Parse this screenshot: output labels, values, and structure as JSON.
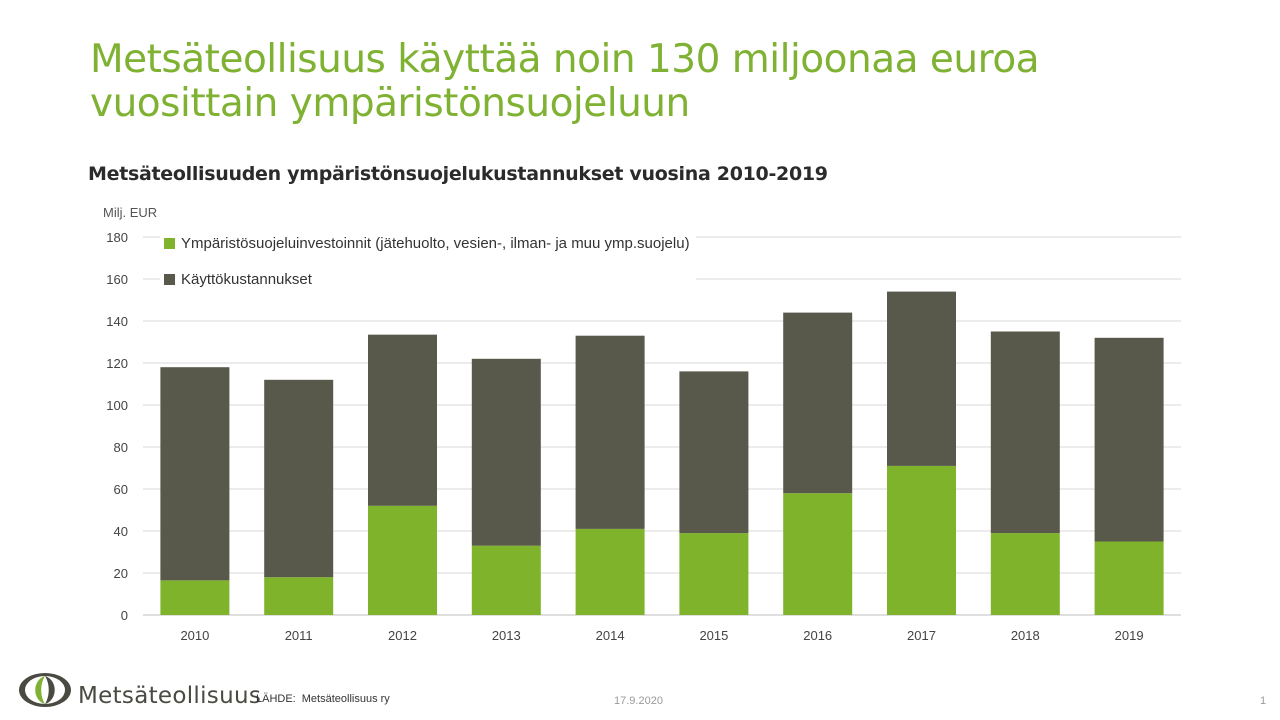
{
  "slide": {
    "title": "Metsäteollisuus käyttää noin 130 miljoonaa euroa vuosittain ympäristönsuojeluun"
  },
  "chart_data": {
    "type": "bar",
    "stacked": true,
    "title": "Metsäteollisuuden ympäristönsuojelukustannukset vuosina 2010-2019",
    "ylabel": "Milj. EUR",
    "xlabel": "",
    "categories": [
      "2010",
      "2011",
      "2012",
      "2013",
      "2014",
      "2015",
      "2016",
      "2017",
      "2018",
      "2019"
    ],
    "series": [
      {
        "name": "Ympäristösuojeluinvestoinnit (jätehuolto, vesien-, ilman- ja muu ymp.suojelu)",
        "color": "#7fb32b",
        "values": [
          16.5,
          18,
          52,
          33,
          41,
          39,
          58,
          71,
          39,
          35
        ]
      },
      {
        "name": "Käyttökustannukset",
        "color": "#58584b",
        "values": [
          101.5,
          94,
          81.5,
          89,
          92,
          77,
          86,
          83,
          96,
          97
        ]
      }
    ],
    "ylim": [
      0,
      180
    ],
    "yticks": [
      0,
      20,
      40,
      60,
      80,
      100,
      120,
      140,
      160,
      180
    ],
    "grid": true,
    "legend_position": "top-left"
  },
  "footer": {
    "logo_text": "Metsäteollisuus",
    "source_label": "LÄHDE:",
    "source_value": "Metsäteollisuus ry",
    "date": "17.9.2020",
    "page": "1"
  }
}
